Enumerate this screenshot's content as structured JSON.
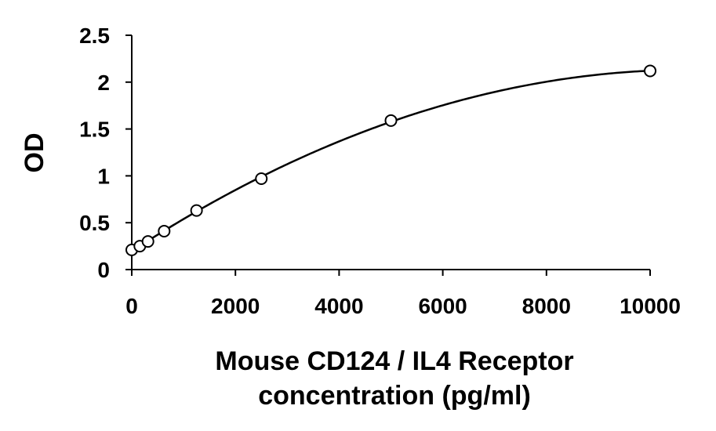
{
  "chart_data": {
    "type": "scatter",
    "title": "",
    "xlabel_lines": [
      "Mouse CD124 / IL4 Receptor",
      "concentration (pg/ml)"
    ],
    "ylabel": "OD",
    "xlim": [
      0,
      10000
    ],
    "ylim": [
      0,
      2.5
    ],
    "x_ticks": [
      0,
      2000,
      4000,
      6000,
      8000,
      10000
    ],
    "x_tick_labels": [
      "0",
      "2000",
      "4000",
      "6000",
      "8000",
      "10000"
    ],
    "y_ticks": [
      0,
      0.5,
      1,
      1.5,
      2,
      2.5
    ],
    "y_tick_labels": [
      "0",
      "0.5",
      "1",
      "1.5",
      "2",
      "2.5"
    ],
    "grid": false,
    "legend": "none",
    "series": [
      {
        "x": [
          0,
          156,
          313,
          625,
          1250,
          2500,
          5000,
          10000
        ],
        "y": [
          0.21,
          0.25,
          0.3,
          0.41,
          0.63,
          0.97,
          1.59,
          2.12
        ],
        "marker": "open-circle",
        "fit": "polynomial-trendline"
      }
    ],
    "colors": {
      "line": "#000000",
      "marker_fill": "#ffffff"
    }
  }
}
